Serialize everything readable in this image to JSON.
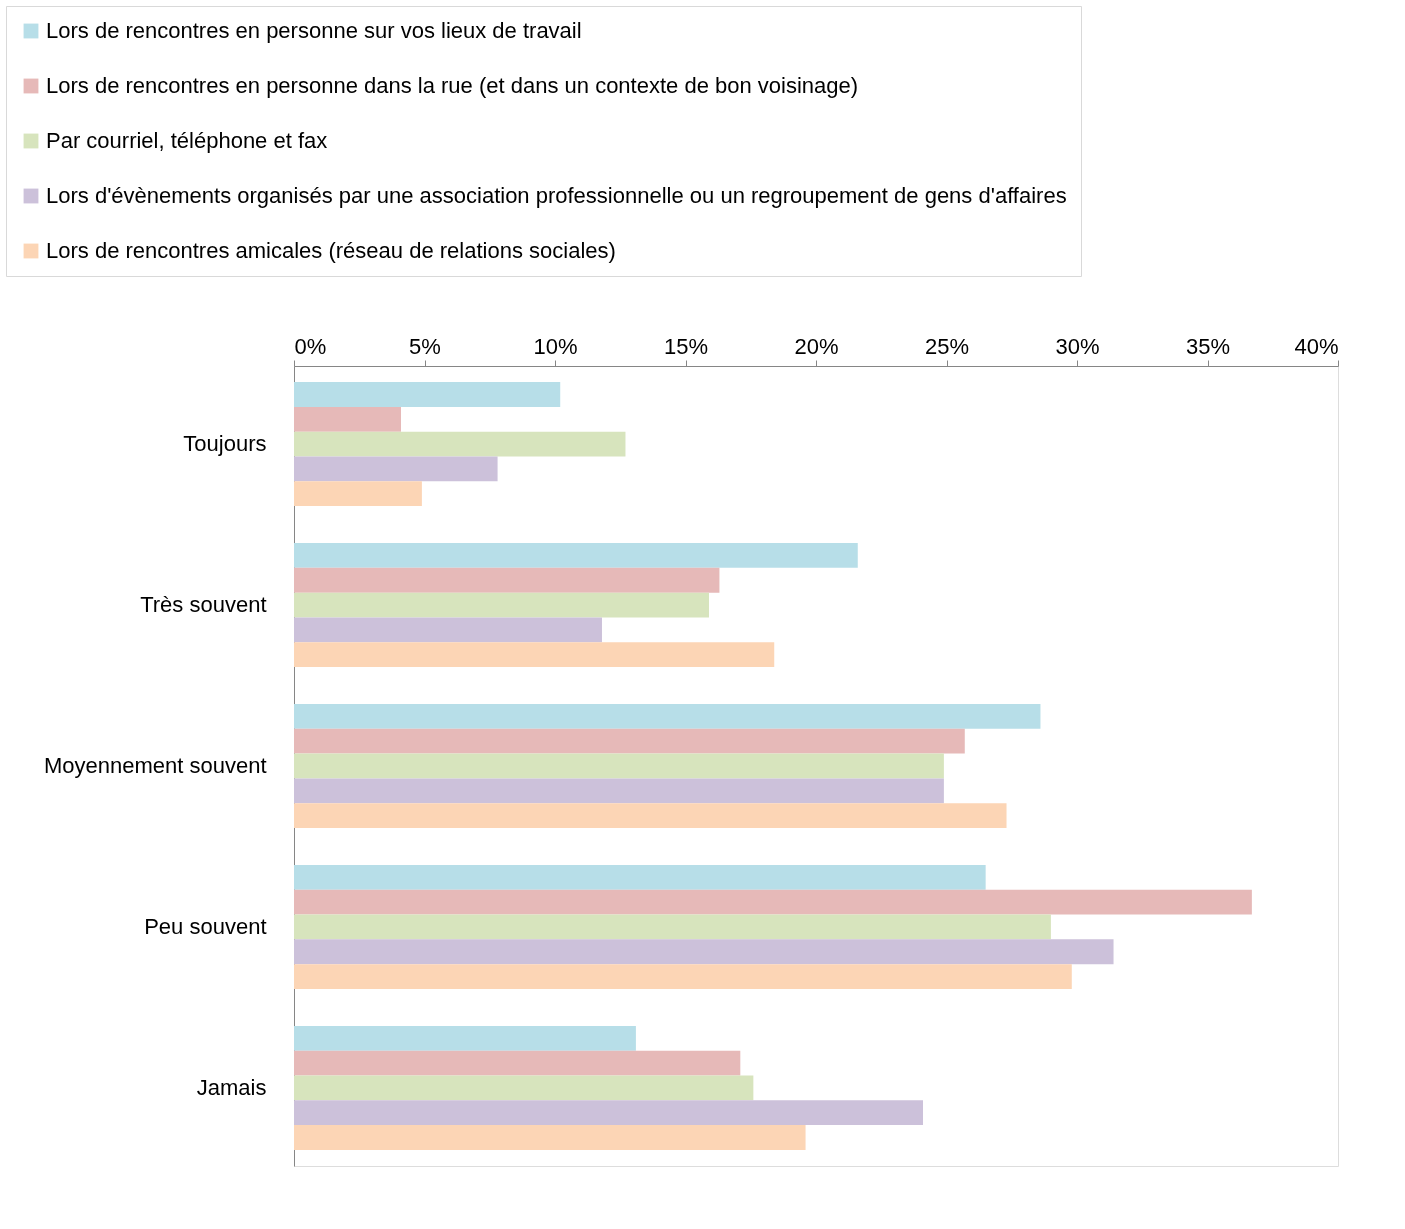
{
  "chart_data": {
    "type": "bar",
    "orientation": "horizontal",
    "categories": [
      "Toujours",
      "Très souvent",
      "Moyennement souvent",
      "Peu souvent",
      "Jamais"
    ],
    "series": [
      {
        "name": "Lors de rencontres en personne sur vos lieux de travail",
        "color": "#b7dee8",
        "values": [
          10.2,
          21.6,
          28.6,
          26.5,
          13.1
        ]
      },
      {
        "name": "Lors de rencontres en personne dans la rue (et dans un contexte de bon voisinage)",
        "color": "#e6b9b8",
        "values": [
          4.1,
          16.3,
          25.7,
          36.7,
          17.1
        ]
      },
      {
        "name": "Par courriel, téléphone et fax",
        "color": "#d7e4bd",
        "values": [
          12.7,
          15.9,
          24.9,
          29.0,
          17.6
        ]
      },
      {
        "name": "Lors d'évènements organisés par une association professionnelle ou un regroupement de gens d'affaires",
        "color": "#ccc1da",
        "values": [
          7.8,
          11.8,
          24.9,
          31.4,
          24.1
        ]
      },
      {
        "name": "Lors de rencontres amicales (réseau de relations sociales)",
        "color": "#fcd5b5",
        "values": [
          4.9,
          18.4,
          27.3,
          29.8,
          19.6
        ]
      }
    ],
    "xlim": [
      0,
      40
    ],
    "xticks": [
      {
        "value": 0,
        "label": "0%"
      },
      {
        "value": 5,
        "label": "5%"
      },
      {
        "value": 10,
        "label": "10%"
      },
      {
        "value": 15,
        "label": "15%"
      },
      {
        "value": 20,
        "label": "20%"
      },
      {
        "value": 25,
        "label": "25%"
      },
      {
        "value": 30,
        "label": "30%"
      },
      {
        "value": 35,
        "label": "35%"
      },
      {
        "value": 40,
        "label": "40%"
      }
    ],
    "grid": false,
    "legend": "top"
  }
}
